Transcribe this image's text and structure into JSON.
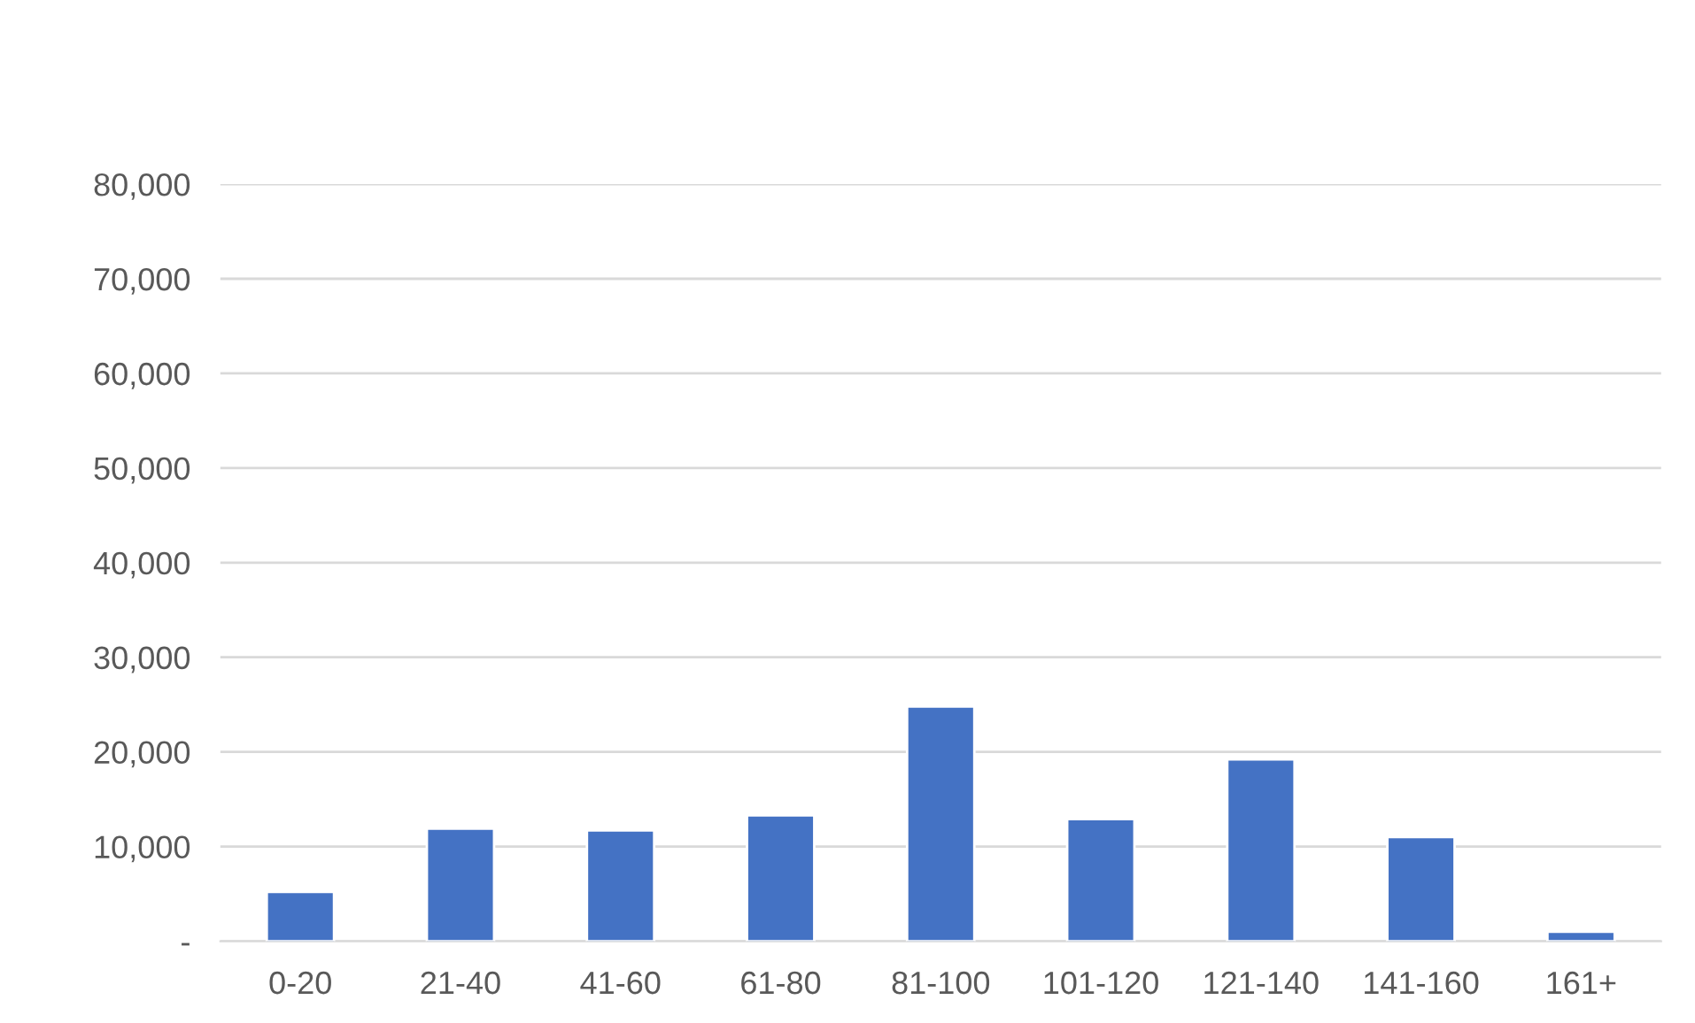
{
  "chart_data": {
    "type": "bar",
    "categories": [
      "0-20",
      "21-40",
      "41-60",
      "61-80",
      "81-100",
      "101-120",
      "121-140",
      "141-160",
      "161+"
    ],
    "values": [
      5200,
      11900,
      11700,
      13300,
      24800,
      12900,
      19200,
      11000,
      1000
    ],
    "color": "#4472c4",
    "ylim": [
      0,
      80000
    ],
    "yticks": [
      {
        "value": 0,
        "label": "-"
      },
      {
        "value": 10000,
        "label": "10,000"
      },
      {
        "value": 20000,
        "label": "20,000"
      },
      {
        "value": 30000,
        "label": "30,000"
      },
      {
        "value": 40000,
        "label": "40,000"
      },
      {
        "value": 50000,
        "label": "50,000"
      },
      {
        "value": 60000,
        "label": "60,000"
      },
      {
        "value": 70000,
        "label": "70,000"
      },
      {
        "value": 80000,
        "label": "80,000"
      }
    ],
    "grid": "y"
  }
}
